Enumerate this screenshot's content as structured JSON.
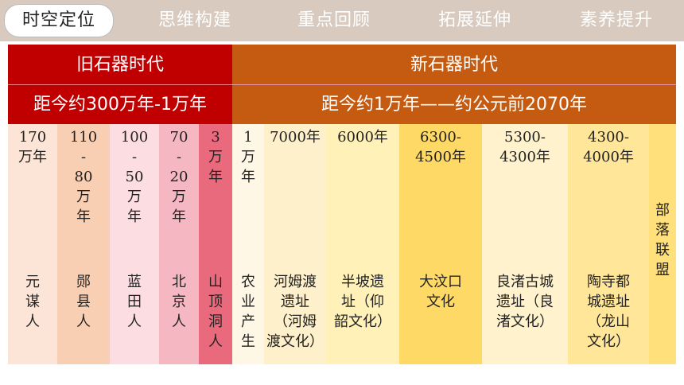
{
  "nav": {
    "tabs": [
      "时空定位",
      "思维构建",
      "重点回顾",
      "拓展延伸",
      "素养提升"
    ]
  },
  "header": {
    "paleolithic": {
      "title": "旧石器时代",
      "range": "距今约300万年-1万年"
    },
    "neolithic": {
      "title": "新石器时代",
      "range": "距今约1万年——约公元前2070年"
    }
  },
  "columns": [
    {
      "date": "170\n万年",
      "site": "元\n谋\n人",
      "color": "#fce4d6"
    },
    {
      "date": "110\n-\n80\n万\n年",
      "site": "郧\n县\n人",
      "color": "#f9cfb4"
    },
    {
      "date": "100\n-\n50\n万\n年",
      "site": "蓝\n田\n人",
      "color": "#fbdde2"
    },
    {
      "date": "70\n-\n20\n万\n年",
      "site": "北\n京\n人",
      "color": "#f5b8c2"
    },
    {
      "date": "3\n万\n年",
      "site": "山\n顶\n洞\n人",
      "color": "#e86a7c"
    },
    {
      "date": "1\n万\n年",
      "site": "农\n业\n产\n生",
      "color": "#fff7e6"
    },
    {
      "date": "7000年",
      "site": "河姆渡\n遗址\n（河姆\n渡文化）",
      "color": "#fff0cc"
    },
    {
      "date": "6000年",
      "site": "半坡遗\n址（仰\n韶文化）",
      "color": "#fff1b8"
    },
    {
      "date": "6300-\n4500年",
      "site": "大汶口\n文化",
      "color": "#ffd966"
    },
    {
      "date": "5300-\n4300年",
      "site": "良渚古城\n遗址（良\n渚文化）",
      "color": "#fff2cc"
    },
    {
      "date": "4300-\n4000年",
      "site": "陶寺都\n城遗址\n（龙山\n文化）",
      "color": "#ffe699"
    },
    {
      "date": "",
      "site": "",
      "color": "#ffe07a"
    }
  ],
  "side_label": "部\n落\n联\n盟",
  "colors": {
    "paleolithic": "#c00000",
    "neolithic": "#c55a11",
    "nav_bg": "#d8cabf"
  }
}
